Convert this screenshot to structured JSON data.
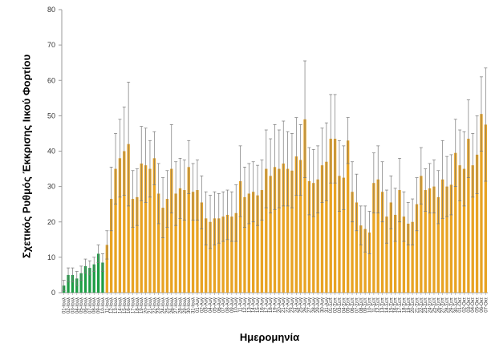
{
  "chart_data": {
    "type": "bar",
    "ylabel": "Σχετικός Ρυθμός Έκκρισης Ιικού Φορτίου",
    "xlabel": "Ημερομηνία",
    "ylim": [
      0,
      80
    ],
    "yticks": [
      0,
      10,
      20,
      30,
      40,
      50,
      60,
      70,
      80
    ],
    "grid": false,
    "colors": {
      "early": "#1e9e45",
      "main": "#e8a323",
      "error": "#777777",
      "axis": "#9a9a9a"
    },
    "green_count": 10,
    "tick_every": 1,
    "categories": [
      "01-Ιουλ",
      "02-Ιουλ",
      "03-Ιουλ",
      "04-Ιουλ",
      "05-Ιουλ",
      "06-Ιουλ",
      "07-Ιουλ",
      "08-Ιουλ",
      "09-Ιουλ",
      "10-Ιουλ",
      "11-Ιουλ",
      "12-Ιουλ",
      "13-Ιουλ",
      "14-Ιουλ",
      "15-Ιουλ",
      "16-Ιουλ",
      "17-Ιουλ",
      "18-Ιουλ",
      "19-Ιουλ",
      "20-Ιουλ",
      "21-Ιουλ",
      "22-Ιουλ",
      "23-Ιουλ",
      "24-Ιουλ",
      "25-Ιουλ",
      "26-Ιουλ",
      "27-Ιουλ",
      "28-Ιουλ",
      "29-Ιουλ",
      "30-Ιουλ",
      "31-Ιουλ",
      "01-Αυγ",
      "02-Αυγ",
      "03-Αυγ",
      "04-Αυγ",
      "05-Αυγ",
      "06-Αυγ",
      "07-Αυγ",
      "08-Αυγ",
      "09-Αυγ",
      "10-Αυγ",
      "11-Αυγ",
      "12-Αυγ",
      "13-Αυγ",
      "14-Αυγ",
      "15-Αυγ",
      "16-Αυγ",
      "17-Αυγ",
      "18-Αυγ",
      "19-Αυγ",
      "20-Αυγ",
      "21-Αυγ",
      "22-Αυγ",
      "23-Αυγ",
      "24-Αυγ",
      "25-Αυγ",
      "26-Αυγ",
      "27-Αυγ",
      "28-Αυγ",
      "29-Αυγ",
      "30-Αυγ",
      "31-Αυγ",
      "01-Σεπ",
      "02-Σεπ",
      "03-Σεπ",
      "04-Σεπ",
      "05-Σεπ",
      "06-Σεπ",
      "07-Σεπ",
      "08-Σεπ",
      "09-Σεπ",
      "10-Σεπ",
      "11-Σεπ",
      "12-Σεπ",
      "13-Σεπ",
      "14-Σεπ",
      "15-Σεπ",
      "16-Σεπ",
      "17-Σεπ",
      "18-Σεπ",
      "19-Σεπ",
      "20-Σεπ",
      "21-Σεπ",
      "22-Σεπ",
      "23-Σεπ",
      "24-Σεπ",
      "25-Σεπ",
      "26-Σεπ",
      "27-Σεπ",
      "28-Σεπ",
      "29-Σεπ",
      "30-Σεπ",
      "01-Οκτ",
      "02-Οκτ",
      "03-Οκτ",
      "04-Οκτ",
      "05-Οκτ",
      "06-Οκτ",
      "07-Οκτ"
    ],
    "values": [
      2.0,
      5.0,
      5.0,
      4.0,
      5.5,
      7.5,
      7.0,
      8.0,
      11.0,
      8.5,
      13.5,
      26.5,
      35.0,
      38.0,
      40.0,
      42.0,
      26.5,
      27.0,
      36.5,
      36.0,
      35.0,
      38.0,
      28.0,
      24.0,
      26.5,
      35.0,
      28.0,
      29.5,
      29.0,
      35.5,
      28.5,
      29.0,
      25.5,
      21.0,
      20.0,
      21.0,
      21.0,
      21.5,
      22.0,
      21.5,
      22.5,
      31.5,
      27.0,
      28.0,
      28.5,
      27.5,
      29.0,
      35.0,
      33.0,
      35.5,
      35.0,
      36.5,
      35.0,
      34.5,
      38.5,
      37.5,
      49.0,
      31.5,
      31.0,
      32.0,
      36.0,
      37.0,
      43.5,
      43.5,
      33.0,
      32.5,
      43.0,
      28.5,
      25.5,
      19.0,
      18.0,
      17.0,
      31.0,
      32.0,
      28.5,
      21.5,
      25.5,
      22.0,
      29.0,
      21.5,
      19.5,
      20.0,
      25.0,
      33.0,
      29.0,
      29.5,
      30.0,
      27.0,
      32.0,
      30.0,
      30.5,
      39.5,
      36.0,
      35.0,
      43.5,
      36.0,
      39.0,
      50.5,
      47.5
    ],
    "errors": [
      1.5,
      2.0,
      2.0,
      2.0,
      2.0,
      2.0,
      2.0,
      2.0,
      2.5,
      2.5,
      4.0,
      9.0,
      10.0,
      11.0,
      12.5,
      17.5,
      8.0,
      8.0,
      10.5,
      10.5,
      8.0,
      7.5,
      8.5,
      8.5,
      8.0,
      12.5,
      9.0,
      8.5,
      8.5,
      7.5,
      8.0,
      8.5,
      7.5,
      7.5,
      7.5,
      7.5,
      7.0,
      7.0,
      7.0,
      7.0,
      8.0,
      10.0,
      8.5,
      8.5,
      8.5,
      8.5,
      8.5,
      11.0,
      10.5,
      12.0,
      11.0,
      12.0,
      10.5,
      10.5,
      11.0,
      10.0,
      16.5,
      9.5,
      9.5,
      9.5,
      10.5,
      11.0,
      12.5,
      12.5,
      10.0,
      9.0,
      6.5,
      8.5,
      8.0,
      5.5,
      6.5,
      6.0,
      8.5,
      9.5,
      8.5,
      7.5,
      7.5,
      7.5,
      9.0,
      7.0,
      6.0,
      6.5,
      7.5,
      8.0,
      6.0,
      7.0,
      7.5,
      7.5,
      11.0,
      8.5,
      8.5,
      9.5,
      10.0,
      10.5,
      11.0,
      9.0,
      11.0,
      10.5,
      16.0
    ]
  }
}
